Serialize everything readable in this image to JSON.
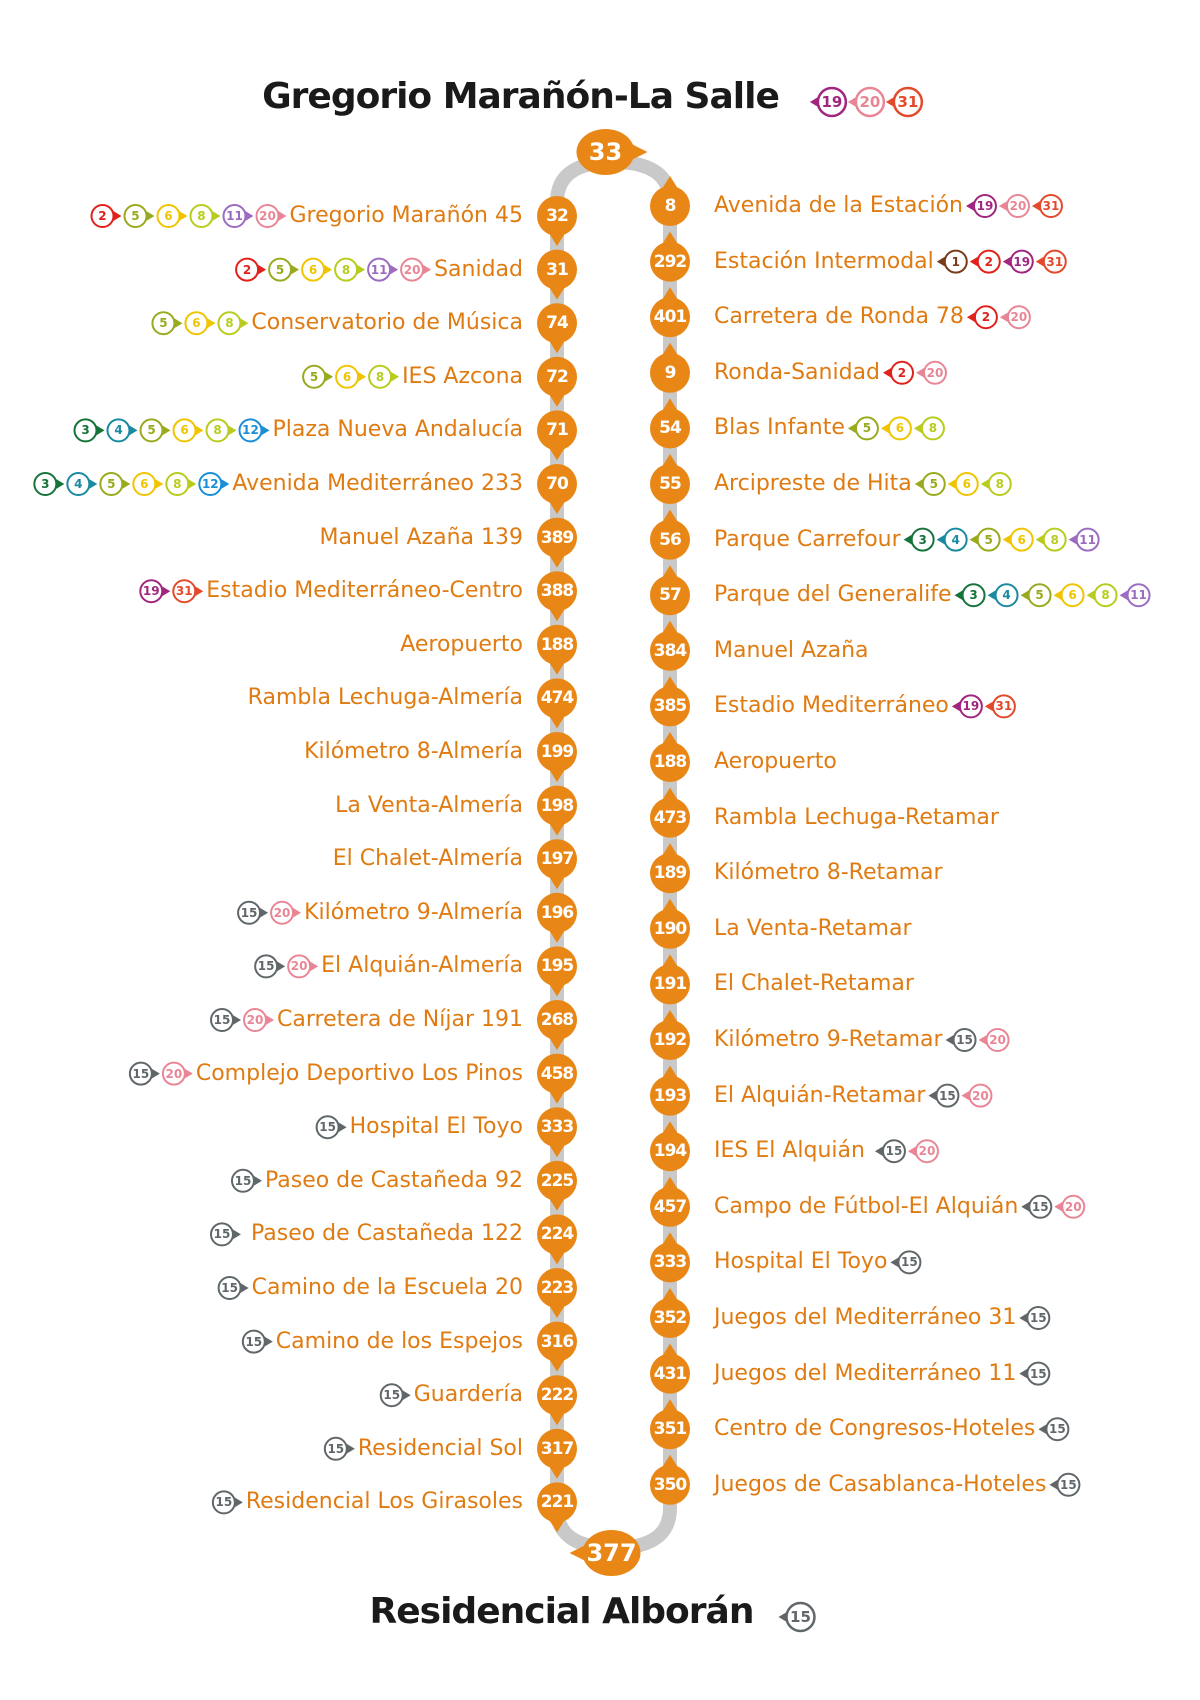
{
  "top_terminal": {
    "name": "Gregorio Marañón-La Salle",
    "code": "33",
    "lines": [
      "19",
      "20",
      "31"
    ]
  },
  "bottom_terminal": {
    "name": "Residencial Alborán",
    "code": "377",
    "lines": [
      "15"
    ]
  },
  "left_stops": [
    {
      "code": "32",
      "name": "Gregorio Marañón 45",
      "lines": [
        "2",
        "5",
        "6",
        "8",
        "11",
        "20"
      ]
    },
    {
      "code": "31",
      "name": "Sanidad",
      "lines": [
        "2",
        "5",
        "6",
        "8",
        "11",
        "20"
      ]
    },
    {
      "code": "74",
      "name": "Conservatorio de Música",
      "lines": [
        "5",
        "6",
        "8"
      ]
    },
    {
      "code": "72",
      "name": "IES Azcona",
      "lines": [
        "5",
        "6",
        "8"
      ]
    },
    {
      "code": "71",
      "name": "Plaza Nueva Andalucía",
      "lines": [
        "3",
        "4",
        "5",
        "6",
        "8",
        "12"
      ]
    },
    {
      "code": "70",
      "name": "Avenida Mediterráneo 233",
      "lines": [
        "3",
        "4",
        "5",
        "6",
        "8",
        "12"
      ]
    },
    {
      "code": "389",
      "name": "Manuel Azaña 139",
      "lines": []
    },
    {
      "code": "388",
      "name": "Estadio Mediterráneo-Centro",
      "lines": [
        "19",
        "31"
      ]
    },
    {
      "code": "188",
      "name": "Aeropuerto",
      "lines": []
    },
    {
      "code": "474",
      "name": "Rambla Lechuga-Almería",
      "lines": []
    },
    {
      "code": "199",
      "name": "Kilómetro 8-Almería",
      "lines": []
    },
    {
      "code": "198",
      "name": "La Venta-Almería",
      "lines": []
    },
    {
      "code": "197",
      "name": "El Chalet-Almería",
      "lines": []
    },
    {
      "code": "196",
      "name": "Kilómetro 9-Almería",
      "lines": [
        "15",
        "20"
      ]
    },
    {
      "code": "195",
      "name": "El Alquián-Almería",
      "lines": [
        "15",
        "20"
      ]
    },
    {
      "code": "268",
      "name": "Carretera de Níjar 191",
      "lines": [
        "15",
        "20"
      ]
    },
    {
      "code": "458",
      "name": "Complejo Deportivo Los Pinos",
      "lines": [
        "15",
        "20"
      ]
    },
    {
      "code": "333",
      "name": "Hospital El Toyo",
      "lines": [
        "15"
      ]
    },
    {
      "code": "225",
      "name": "Paseo de Castañeda 92",
      "lines": [
        "15"
      ]
    },
    {
      "code": "224",
      "name": "Paseo  de Castañeda 122",
      "lines": [
        "15"
      ]
    },
    {
      "code": "223",
      "name": "Camino de la Escuela 20",
      "lines": [
        "15"
      ]
    },
    {
      "code": "316",
      "name": "Camino de los Espejos",
      "lines": [
        "15"
      ]
    },
    {
      "code": "222",
      "name": "Guardería",
      "lines": [
        "15"
      ]
    },
    {
      "code": "317",
      "name": "Residencial Sol",
      "lines": [
        "15"
      ]
    },
    {
      "code": "221",
      "name": "Residencial Los Girasoles",
      "lines": [
        "15"
      ]
    }
  ],
  "right_stops": [
    {
      "code": "8",
      "name": "Avenida de la Estación",
      "lines": [
        "19",
        "20",
        "31"
      ]
    },
    {
      "code": "292",
      "name": "Estación Intermodal",
      "lines": [
        "1",
        "2",
        "19",
        "31"
      ]
    },
    {
      "code": "401",
      "name": "Carretera de Ronda 78",
      "lines": [
        "2",
        "20"
      ]
    },
    {
      "code": "9",
      "name": "Ronda-Sanidad",
      "lines": [
        "2",
        "20"
      ]
    },
    {
      "code": "54",
      "name": "Blas Infante",
      "lines": [
        "5",
        "6",
        "8"
      ]
    },
    {
      "code": "55",
      "name": "Arcipreste de Hita",
      "lines": [
        "5",
        "6",
        "8"
      ]
    },
    {
      "code": "56",
      "name": "Parque Carrefour",
      "lines": [
        "3",
        "4",
        "5",
        "6",
        "8",
        "11"
      ]
    },
    {
      "code": "57",
      "name": "Parque del Generalife",
      "lines": [
        "3",
        "4",
        "5",
        "6",
        "8",
        "11"
      ]
    },
    {
      "code": "384",
      "name": "Manuel Azaña",
      "lines": []
    },
    {
      "code": "385",
      "name": "Estadio Mediterráneo",
      "lines": [
        "19",
        "31"
      ]
    },
    {
      "code": "188",
      "name": "Aeropuerto",
      "lines": []
    },
    {
      "code": "473",
      "name": "Rambla Lechuga-Retamar",
      "lines": []
    },
    {
      "code": "189",
      "name": "Kilómetro 8-Retamar",
      "lines": []
    },
    {
      "code": "190",
      "name": "La Venta-Retamar",
      "lines": []
    },
    {
      "code": "191",
      "name": "El Chalet-Retamar",
      "lines": []
    },
    {
      "code": "192",
      "name": "Kilómetro 9-Retamar",
      "lines": [
        "15",
        "20"
      ]
    },
    {
      "code": "193",
      "name": "El Alquián-Retamar",
      "lines": [
        "15",
        "20"
      ]
    },
    {
      "code": "194",
      "name": "IES El  Alquián",
      "lines": [
        "15",
        "20"
      ]
    },
    {
      "code": "457",
      "name": "Campo de Fútbol-El Alquián",
      "lines": [
        "15",
        "20"
      ]
    },
    {
      "code": "333",
      "name": "Hospital El Toyo",
      "lines": [
        "15"
      ]
    },
    {
      "code": "352",
      "name": "Juegos del Mediterráneo 31",
      "lines": [
        "15"
      ]
    },
    {
      "code": "431",
      "name": "Juegos del Mediterráneo 11",
      "lines": [
        "15"
      ]
    },
    {
      "code": "351",
      "name": "Centro de Congresos-Hoteles",
      "lines": [
        "15"
      ]
    },
    {
      "code": "350",
      "name": "Juegos de Casablanca-Hoteles",
      "lines": [
        "15"
      ]
    }
  ],
  "line_colors": {
    "1": "#7a3b1c",
    "2": "#e1211c",
    "3": "#16733a",
    "4": "#1a8aa0",
    "5": "#9aaa1e",
    "6": "#f0c400",
    "8": "#b9cc1e",
    "11": "#9b6cc2",
    "12": "#1a8fd8",
    "15": "#5f676a",
    "19": "#a0267f",
    "20": "#e98696",
    "31": "#e34a2c"
  },
  "route_color": "#e98716",
  "track_color": "#c9c9c9"
}
